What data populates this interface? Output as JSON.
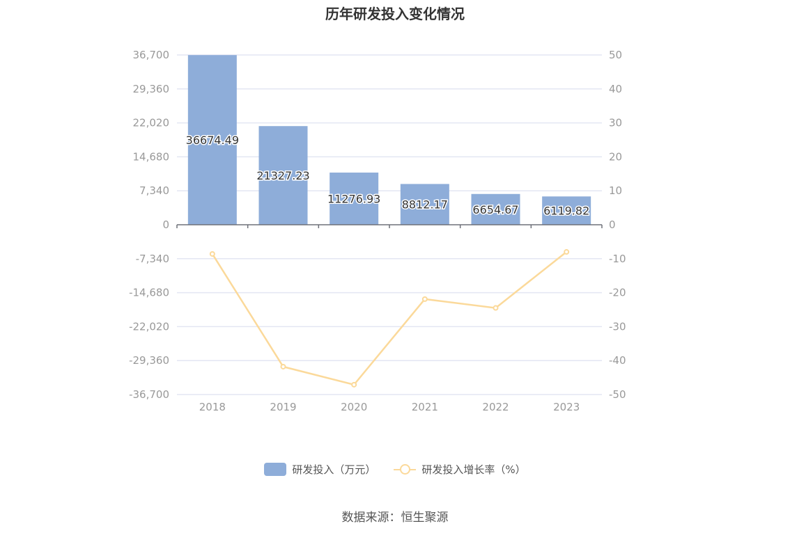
{
  "chart_data": {
    "type": "bar",
    "title": "历年研发投入变化情况",
    "categories": [
      "2018",
      "2019",
      "2020",
      "2021",
      "2022",
      "2023"
    ],
    "series": [
      {
        "name": "研发投入（万元）",
        "type": "bar",
        "axis": "left",
        "color": "#8eadd9",
        "values": [
          36674.49,
          21327.23,
          11276.93,
          8812.17,
          6654.67,
          6119.82
        ],
        "labels": [
          "36674.49",
          "21327.23",
          "11276.93",
          "8812.17",
          "6654.67",
          "6119.82"
        ]
      },
      {
        "name": "研发投入增长率（%）",
        "type": "line",
        "axis": "right",
        "color": "#fbd99a",
        "values": [
          -8.6,
          -41.8,
          -47.1,
          -21.9,
          -24.5,
          -8.0
        ]
      }
    ],
    "left_axis": {
      "ylim": [
        -36700,
        36700
      ],
      "ticks": [
        36700,
        29360,
        22020,
        14680,
        7340,
        0,
        -7340,
        -14680,
        -22020,
        -29360,
        -36700
      ],
      "tick_labels": [
        "36,700",
        "29,360",
        "22,020",
        "14,680",
        "7,340",
        "0",
        "-7,340",
        "-14,680",
        "-22,020",
        "-29,360",
        "-36,700"
      ]
    },
    "right_axis": {
      "ylim": [
        -50,
        50
      ],
      "ticks": [
        50,
        40,
        30,
        20,
        10,
        0,
        -10,
        -20,
        -30,
        -40,
        -50
      ],
      "tick_labels": [
        "50",
        "40",
        "30",
        "20",
        "10",
        "0",
        "-10",
        "-20",
        "-30",
        "-40",
        "-50"
      ]
    },
    "grid": true,
    "legend_position": "bottom-center"
  },
  "source": "数据来源：恒生聚源",
  "colors": {
    "bar": "#8eadd9",
    "line": "#fbd99a",
    "grid": "#e3e6f3",
    "axis_text": "#999999",
    "title": "#333333"
  }
}
